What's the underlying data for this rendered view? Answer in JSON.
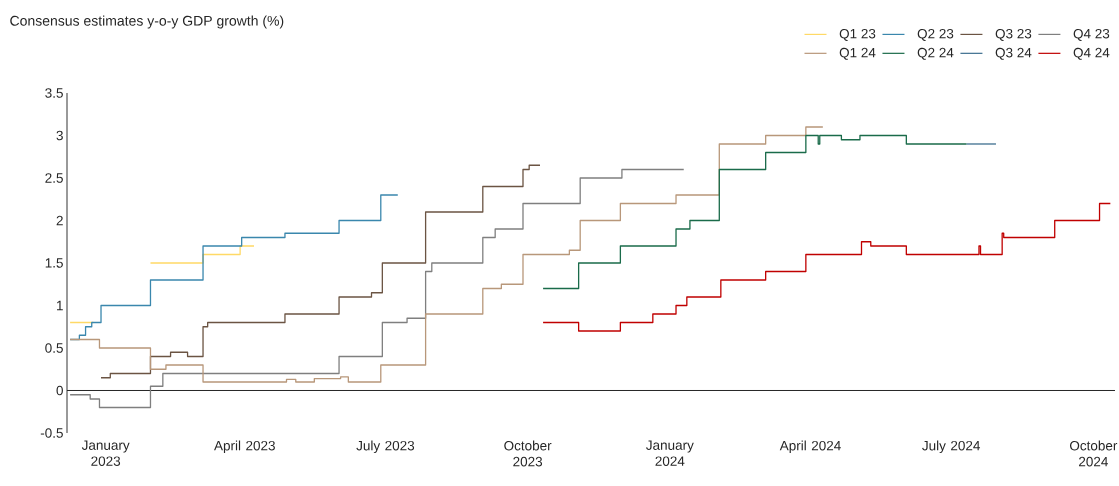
{
  "chart_data": {
    "type": "step",
    "title": "Consensus estimates y-o-y GDP growth (%)",
    "xlim": [
      "2022-12-07",
      "2024-10-15"
    ],
    "ylim": [
      -0.5,
      3.5
    ],
    "yticks": [
      -0.5,
      0,
      0.5,
      1,
      1.5,
      2,
      2.5,
      3,
      3.5
    ],
    "xticks": [
      {
        "value": "2023-01-01",
        "label": "January 2023"
      },
      {
        "value": "2023-04-01",
        "label": "April 2023"
      },
      {
        "value": "2023-07-01",
        "label": "July 2023"
      },
      {
        "value": "2023-10-01",
        "label": "October 2023"
      },
      {
        "value": "2024-01-01",
        "label": "January 2024"
      },
      {
        "value": "2024-04-01",
        "label": "April 2024"
      },
      {
        "value": "2024-07-01",
        "label": "July 2024"
      },
      {
        "value": "2024-10-01",
        "label": "October 2024"
      }
    ],
    "legend": "top right",
    "series": [
      {
        "name": "Q1 23",
        "color": "#ffd966",
        "x": [
          "2022-12-09",
          "2022-12-24",
          "2022-12-29",
          "2023-01-30",
          "2023-03-05",
          "2023-03-29",
          "2023-04-07"
        ],
        "values": [
          0.8,
          0.8,
          null,
          1.5,
          1.6,
          1.7,
          1.7
        ]
      },
      {
        "name": "Q2 23",
        "color": "#3a87ad",
        "x": [
          "2022-12-09",
          "2022-12-15",
          "2022-12-19",
          "2022-12-23",
          "2022-12-29",
          "2023-01-30",
          "2023-03-05",
          "2023-03-30",
          "2023-04-27",
          "2023-06-01",
          "2023-06-28",
          "2023-07-09"
        ],
        "values": [
          0.6,
          0.65,
          0.75,
          0.8,
          1.0,
          1.3,
          1.7,
          1.8,
          1.85,
          2.0,
          2.3,
          2.3
        ]
      },
      {
        "name": "Q3 23",
        "color": "#6b5443",
        "x": [
          "2022-12-29",
          "2023-01-04",
          "2023-01-30",
          "2023-02-12",
          "2023-02-23",
          "2023-03-05",
          "2023-03-08",
          "2023-04-27",
          "2023-06-01",
          "2023-06-22",
          "2023-06-29",
          "2023-07-27",
          "2023-09-02",
          "2023-09-28",
          "2023-10-02",
          "2023-10-09"
        ],
        "values": [
          0.15,
          0.2,
          0.4,
          0.45,
          0.4,
          0.75,
          0.8,
          0.9,
          1.1,
          1.15,
          1.5,
          2.1,
          2.4,
          2.6,
          2.65,
          2.65
        ]
      },
      {
        "name": "Q4 23",
        "color": "#7f7f7f",
        "x": [
          "2022-12-09",
          "2022-12-22",
          "2022-12-28",
          "2023-01-30",
          "2023-02-07",
          "2023-06-01",
          "2023-06-29",
          "2023-07-15",
          "2023-07-27",
          "2023-07-31",
          "2023-09-02",
          "2023-09-10",
          "2023-09-28",
          "2023-11-04",
          "2023-12-01",
          "2024-01-10"
        ],
        "values": [
          -0.05,
          -0.1,
          -0.2,
          0.05,
          0.2,
          0.4,
          0.8,
          0.85,
          1.4,
          1.5,
          1.8,
          1.9,
          2.2,
          2.5,
          2.6,
          2.6
        ]
      },
      {
        "name": "Q1 24",
        "color": "#b8977a",
        "x": [
          "2022-12-09",
          "2022-12-28",
          "2023-01-30",
          "2023-02-09",
          "2023-03-05",
          "2023-04-28",
          "2023-05-04",
          "2023-05-16",
          "2023-06-02",
          "2023-06-07",
          "2023-06-28",
          "2023-07-27",
          "2023-09-02",
          "2023-09-14",
          "2023-09-28",
          "2023-10-28",
          "2023-11-04",
          "2023-11-30",
          "2024-01-05",
          "2024-02-02",
          "2024-03-03",
          "2024-03-29",
          "2024-04-09"
        ],
        "values": [
          0.6,
          0.5,
          0.25,
          0.3,
          0.1,
          0.13,
          0.1,
          0.14,
          0.16,
          0.1,
          0.3,
          0.9,
          1.2,
          1.25,
          1.6,
          1.65,
          2.0,
          2.2,
          2.3,
          2.9,
          3.0,
          3.1,
          3.1
        ]
      },
      {
        "name": "Q2 24",
        "color": "#1a6b4a",
        "x": [
          "2023-10-11",
          "2023-11-03",
          "2023-11-30",
          "2024-01-05",
          "2024-01-14",
          "2024-02-02",
          "2024-03-03",
          "2024-03-29",
          "2024-04-06",
          "2024-04-07",
          "2024-04-21",
          "2024-05-03",
          "2024-06-02",
          "2024-07-11"
        ],
        "values": [
          1.2,
          1.5,
          1.7,
          1.9,
          2.0,
          2.6,
          2.8,
          3.0,
          2.9,
          3.0,
          2.95,
          3.0,
          2.9,
          2.9
        ]
      },
      {
        "name": "Q3 24",
        "color": "#3d6e8f",
        "x": [
          "2024-07-11",
          "2024-07-30"
        ],
        "values": [
          2.9,
          2.9
        ]
      },
      {
        "name": "Q4 24",
        "color": "#c00000",
        "x": [
          "2023-10-11",
          "2023-11-03",
          "2023-11-30",
          "2023-12-21",
          "2024-01-05",
          "2024-01-12",
          "2024-02-03",
          "2024-03-03",
          "2024-03-29",
          "2024-05-04",
          "2024-05-10",
          "2024-06-02",
          "2024-07-19",
          "2024-07-20",
          "2024-08-03",
          "2024-08-04",
          "2024-09-06",
          "2024-10-05",
          "2024-10-12"
        ],
        "values": [
          0.8,
          0.7,
          0.8,
          0.9,
          1.0,
          1.1,
          1.3,
          1.4,
          1.6,
          1.75,
          1.7,
          1.6,
          1.7,
          1.6,
          1.85,
          1.8,
          2.0,
          2.2,
          2.2
        ]
      }
    ]
  }
}
